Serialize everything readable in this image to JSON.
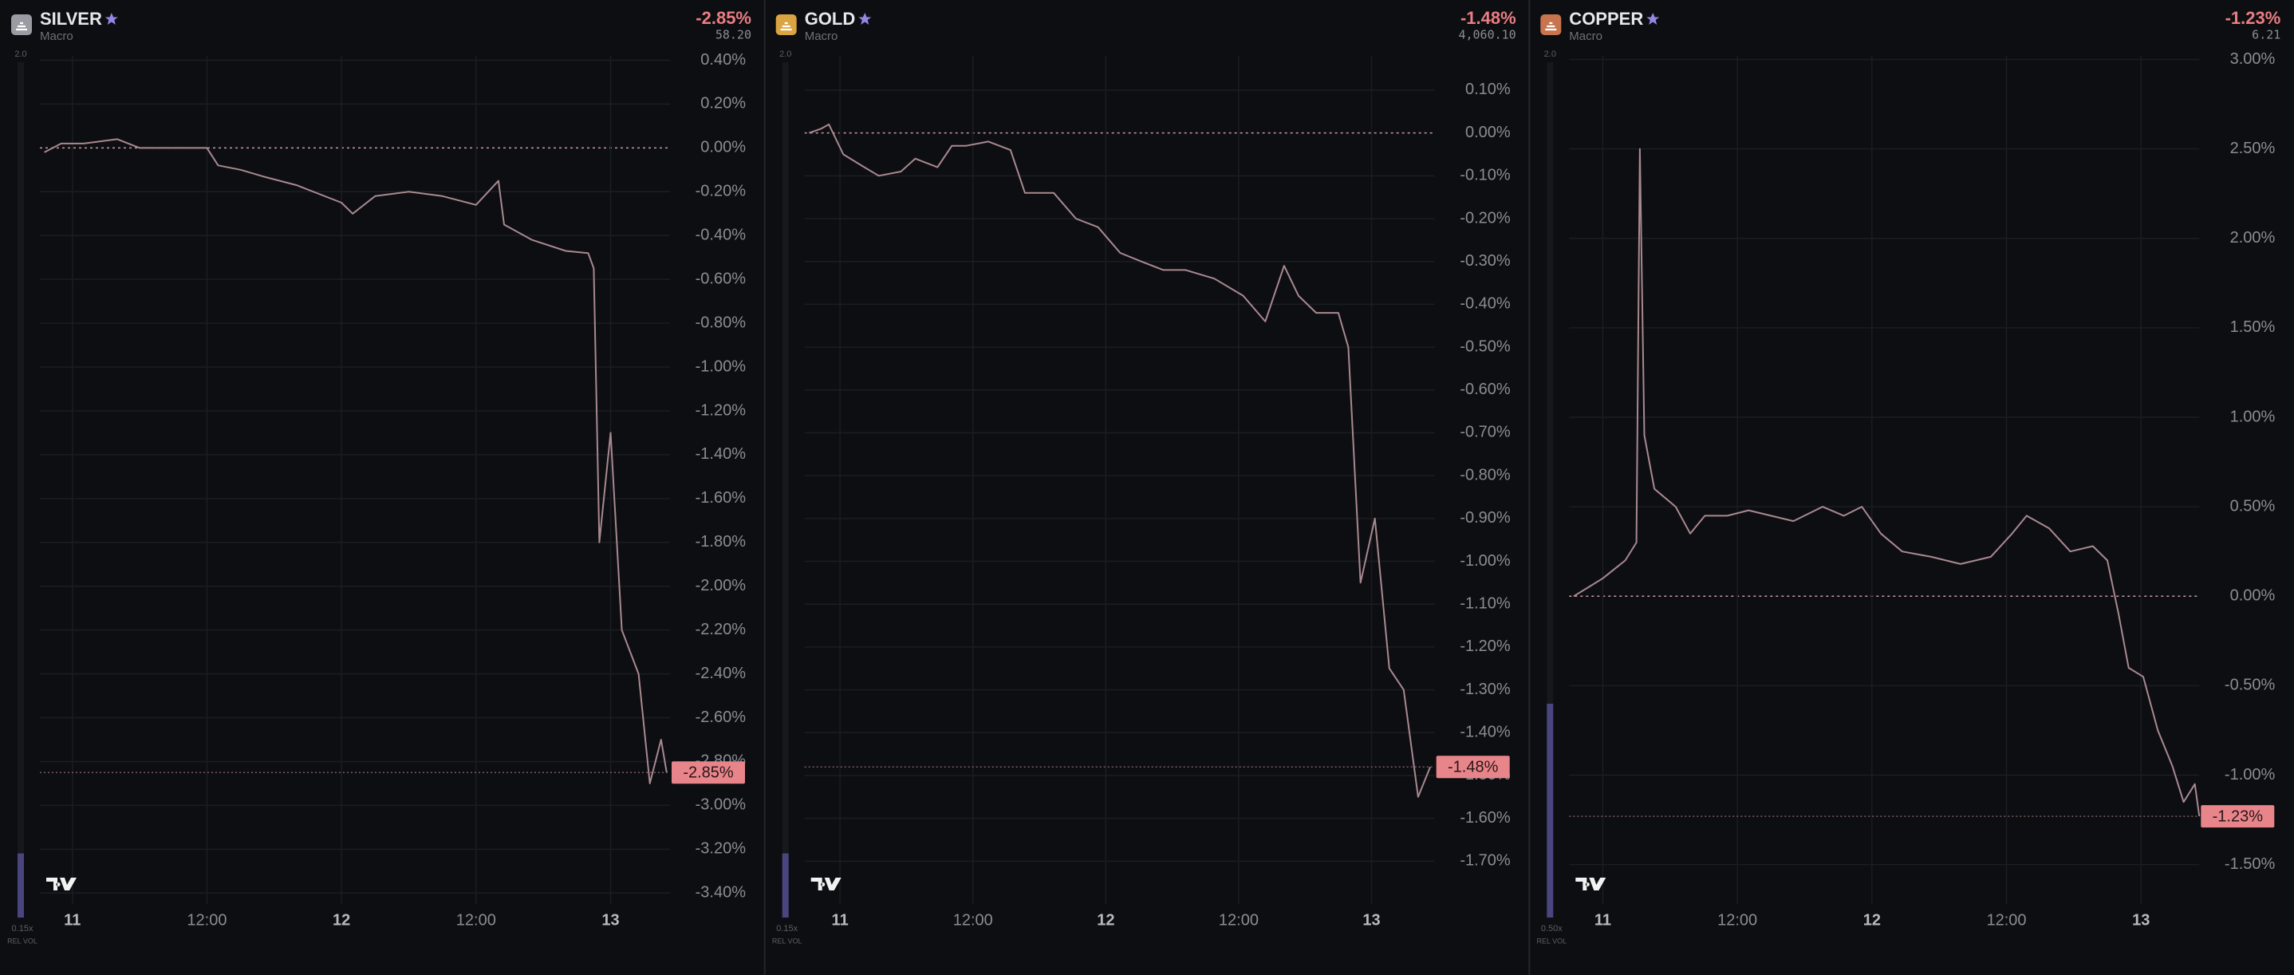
{
  "chart_data": [
    {
      "type": "line",
      "title": "SILVER",
      "subtitle": "Macro",
      "price": "58.20",
      "icon_color": "#9a9ca3",
      "current": {
        "value": -2.85,
        "label": "-2.85%"
      },
      "rel_vol": {
        "value": 0.15,
        "label": "0.15x"
      },
      "rel_vol_max": {
        "value": 2,
        "label": "2.0"
      },
      "rel_vol_title": "REL VOL",
      "x": [
        -2.5,
        -1,
        1,
        4,
        6,
        9,
        12,
        13,
        15,
        17,
        20,
        24,
        25,
        27,
        30,
        33,
        36,
        38,
        38.5,
        41,
        44,
        46,
        46.5,
        47,
        48,
        49,
        50.5,
        51.5,
        52.5,
        53
      ],
      "series": [
        {
          "color": "#a98990",
          "values": [
            -0.02,
            0.02,
            0.02,
            0.04,
            0.0,
            0.0,
            0.0,
            -0.08,
            -0.1,
            -0.13,
            -0.17,
            -0.25,
            -0.3,
            -0.22,
            -0.2,
            -0.22,
            -0.26,
            -0.15,
            -0.35,
            -0.42,
            -0.47,
            -0.48,
            -0.55,
            -1.8,
            -1.3,
            -2.2,
            -2.4,
            -2.9,
            -2.7,
            -2.85
          ]
        }
      ],
      "xlim": [
        -2.9,
        53.3
      ],
      "ylim": [
        -3.45,
        0.42
      ],
      "xticks": [
        {
          "value": 0,
          "label": "11"
        },
        {
          "value": 12,
          "label": "12:00"
        },
        {
          "value": 24,
          "label": "12"
        },
        {
          "value": 36,
          "label": "12:00"
        },
        {
          "value": 48,
          "label": "13"
        }
      ],
      "yticks": [
        {
          "value": 0.4,
          "label": "0.40%"
        },
        {
          "value": 0.2,
          "label": "0.20%"
        },
        {
          "value": 0,
          "label": "0.00%"
        },
        {
          "value": -0.2,
          "label": "-0.20%"
        },
        {
          "value": -0.4,
          "label": "-0.40%"
        },
        {
          "value": -0.6,
          "label": "-0.60%"
        },
        {
          "value": -0.8,
          "label": "-0.80%"
        },
        {
          "value": -1.0,
          "label": "-1.00%"
        },
        {
          "value": -1.2,
          "label": "-1.20%"
        },
        {
          "value": -1.4,
          "label": "-1.40%"
        },
        {
          "value": -1.6,
          "label": "-1.60%"
        },
        {
          "value": -1.8,
          "label": "-1.80%"
        },
        {
          "value": -2.0,
          "label": "-2.00%"
        },
        {
          "value": -2.2,
          "label": "-2.20%"
        },
        {
          "value": -2.4,
          "label": "-2.40%"
        },
        {
          "value": -2.6,
          "label": "-2.60%"
        },
        {
          "value": -2.8,
          "label": "-2.80%"
        },
        {
          "value": -3.0,
          "label": "-3.00%"
        },
        {
          "value": -3.2,
          "label": "-3.20%"
        },
        {
          "value": -3.4,
          "label": "-3.40%"
        }
      ],
      "grid": true
    },
    {
      "type": "line",
      "title": "GOLD",
      "subtitle": "Macro",
      "price": "4,060.10",
      "icon_color": "#d9a441",
      "current": {
        "value": -1.48,
        "label": "-1.48%"
      },
      "rel_vol": {
        "value": 0.15,
        "label": "0.15x"
      },
      "rel_vol_max": {
        "value": 2,
        "label": "2.0"
      },
      "rel_vol_title": "REL VOL",
      "x": [
        -2.8,
        -1.7,
        -1.0,
        0.3,
        2.2,
        3.5,
        5.5,
        6.8,
        8.8,
        10.1,
        11.4,
        13.4,
        15.4,
        16.7,
        19.3,
        21.3,
        23.3,
        25.3,
        27.2,
        29.2,
        31.2,
        33.8,
        36.4,
        38.4,
        40.1,
        41.4,
        43.0,
        45.0,
        45.9,
        47.0,
        48.3,
        49.6,
        50.9,
        52.2,
        53.3
      ],
      "series": [
        {
          "color": "#a98990",
          "values": [
            0.0,
            0.01,
            0.02,
            -0.05,
            -0.08,
            -0.1,
            -0.09,
            -0.06,
            -0.08,
            -0.03,
            -0.03,
            -0.02,
            -0.04,
            -0.14,
            -0.14,
            -0.2,
            -0.22,
            -0.28,
            -0.3,
            -0.32,
            -0.32,
            -0.34,
            -0.38,
            -0.44,
            -0.31,
            -0.38,
            -0.42,
            -0.42,
            -0.5,
            -1.05,
            -0.9,
            -1.25,
            -1.3,
            -1.55,
            -1.48
          ]
        }
      ],
      "xlim": [
        -3.2,
        53.7
      ],
      "ylim": [
        -1.8,
        0.18
      ],
      "xticks": [
        {
          "value": 0,
          "label": "11"
        },
        {
          "value": 12,
          "label": "12:00"
        },
        {
          "value": 24,
          "label": "12"
        },
        {
          "value": 36,
          "label": "12:00"
        },
        {
          "value": 48,
          "label": "13"
        }
      ],
      "yticks": [
        {
          "value": 0.1,
          "label": "0.10%"
        },
        {
          "value": 0,
          "label": "0.00%"
        },
        {
          "value": -0.1,
          "label": "-0.10%"
        },
        {
          "value": -0.2,
          "label": "-0.20%"
        },
        {
          "value": -0.3,
          "label": "-0.30%"
        },
        {
          "value": -0.4,
          "label": "-0.40%"
        },
        {
          "value": -0.5,
          "label": "-0.50%"
        },
        {
          "value": -0.6,
          "label": "-0.60%"
        },
        {
          "value": -0.7,
          "label": "-0.70%"
        },
        {
          "value": -0.8,
          "label": "-0.80%"
        },
        {
          "value": -0.9,
          "label": "-0.90%"
        },
        {
          "value": -1.0,
          "label": "-1.00%"
        },
        {
          "value": -1.1,
          "label": "-1.10%"
        },
        {
          "value": -1.2,
          "label": "-1.20%"
        },
        {
          "value": -1.3,
          "label": "-1.30%"
        },
        {
          "value": -1.4,
          "label": "-1.40%"
        },
        {
          "value": -1.5,
          "label": "-1.50%"
        },
        {
          "value": -1.6,
          "label": "-1.60%"
        },
        {
          "value": -1.7,
          "label": "-1.70%"
        }
      ],
      "grid": true
    },
    {
      "type": "line",
      "title": "COPPER",
      "subtitle": "Macro",
      "price": "6.21",
      "icon_color": "#c8744f",
      "current": {
        "value": -1.23,
        "label": "-1.23%"
      },
      "rel_vol": {
        "value": 0.5,
        "label": "0.50x"
      },
      "rel_vol_max": {
        "value": 2,
        "label": "2.0"
      },
      "rel_vol_title": "REL VOL",
      "x": [
        -2.6,
        -1.3,
        0,
        2.0,
        3.0,
        3.3,
        3.7,
        4.6,
        6.5,
        7.8,
        9.1,
        11.1,
        13.0,
        15.0,
        17.0,
        19.6,
        21.5,
        23.1,
        24.8,
        26.7,
        29.3,
        31.9,
        34.6,
        36.5,
        37.8,
        39.8,
        41.7,
        43.7,
        45.0,
        46.0,
        46.9,
        48.2,
        49.5,
        50.8,
        51.8,
        52.8,
        53.2
      ],
      "series": [
        {
          "color": "#a98990",
          "values": [
            0.0,
            0.05,
            0.1,
            0.2,
            0.3,
            2.5,
            0.9,
            0.6,
            0.5,
            0.35,
            0.45,
            0.45,
            0.48,
            0.45,
            0.42,
            0.5,
            0.45,
            0.5,
            0.35,
            0.25,
            0.22,
            0.18,
            0.22,
            0.35,
            0.45,
            0.38,
            0.25,
            0.28,
            0.2,
            -0.1,
            -0.4,
            -0.45,
            -0.75,
            -0.95,
            -1.15,
            -1.05,
            -1.23
          ]
        }
      ],
      "xlim": [
        -3.0,
        53.2
      ],
      "ylim": [
        -1.72,
        3.02
      ],
      "xticks": [
        {
          "value": 0,
          "label": "11"
        },
        {
          "value": 12,
          "label": "12:00"
        },
        {
          "value": 24,
          "label": "12"
        },
        {
          "value": 36,
          "label": "12:00"
        },
        {
          "value": 48,
          "label": "13"
        }
      ],
      "yticks": [
        {
          "value": 3.0,
          "label": "3.00%"
        },
        {
          "value": 2.5,
          "label": "2.50%"
        },
        {
          "value": 2.0,
          "label": "2.00%"
        },
        {
          "value": 1.5,
          "label": "1.50%"
        },
        {
          "value": 1.0,
          "label": "1.00%"
        },
        {
          "value": 0.5,
          "label": "0.50%"
        },
        {
          "value": 0,
          "label": "0.00%"
        },
        {
          "value": -0.5,
          "label": "-0.50%"
        },
        {
          "value": -1.0,
          "label": "-1.00%"
        },
        {
          "value": -1.5,
          "label": "-1.50%"
        }
      ],
      "grid": true
    }
  ]
}
